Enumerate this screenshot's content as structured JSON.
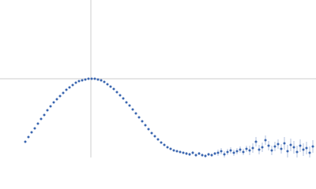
{
  "chart_data": {
    "type": "scatter",
    "color": "#3b66b0",
    "xlim": [
      0,
      400
    ],
    "ylim": [
      0,
      200
    ],
    "crosshair": {
      "x": 115,
      "y": 100
    },
    "x": [
      32,
      36,
      40,
      44,
      48,
      52,
      56,
      60,
      64,
      68,
      72,
      76,
      80,
      84,
      88,
      92,
      96,
      100,
      104,
      108,
      112,
      116,
      120,
      124,
      128,
      132,
      136,
      140,
      144,
      148,
      152,
      156,
      160,
      164,
      168,
      172,
      176,
      180,
      184,
      188,
      192,
      196,
      200,
      204,
      208,
      212,
      216,
      220,
      224,
      228,
      232,
      236,
      240,
      244,
      248,
      252,
      256,
      260,
      264,
      268,
      272,
      276,
      280,
      284,
      288,
      292,
      296,
      300,
      304,
      308,
      312,
      316,
      320,
      324,
      328,
      332,
      336,
      340,
      344,
      348,
      352,
      356,
      360,
      364,
      368,
      372,
      376,
      380,
      384,
      388,
      392,
      396
    ],
    "values": [
      20,
      26,
      32,
      37,
      43,
      49,
      54,
      60,
      65,
      70,
      74,
      78,
      82,
      86,
      89,
      92,
      95,
      97,
      98,
      99,
      100,
      100,
      100,
      99,
      98,
      96,
      93,
      90,
      87,
      83,
      79,
      75,
      70,
      66,
      61,
      56,
      51,
      46,
      41,
      36,
      31,
      27,
      23,
      19,
      16,
      13,
      11,
      9,
      8,
      7,
      6,
      5,
      4,
      6,
      3,
      5,
      3,
      2,
      4,
      3,
      5,
      6,
      8,
      4,
      7,
      9,
      6,
      8,
      10,
      7,
      11,
      9,
      12,
      20,
      10,
      13,
      22,
      15,
      9,
      14,
      17,
      11,
      18,
      8,
      16,
      13,
      7,
      15,
      10,
      12,
      6,
      14
    ],
    "errors": [
      1,
      1,
      1,
      1,
      1,
      1,
      1,
      1,
      1,
      1,
      1,
      1,
      1,
      1,
      1,
      1,
      1,
      1,
      1,
      1,
      1,
      1,
      1,
      1,
      1,
      1,
      1,
      1,
      1,
      1,
      1,
      1,
      1,
      1,
      1,
      1,
      1,
      1,
      1,
      1,
      1,
      1,
      1,
      1,
      1,
      1,
      1,
      1,
      1,
      1,
      1,
      2,
      2,
      2,
      2,
      2,
      2,
      2,
      2,
      2,
      2,
      4,
      4,
      4,
      4,
      4,
      4,
      4,
      4,
      4,
      4,
      6,
      6,
      6,
      6,
      6,
      6,
      6,
      6,
      6,
      6,
      6,
      8,
      8,
      8,
      8,
      8,
      8,
      8,
      8,
      8,
      8
    ]
  }
}
